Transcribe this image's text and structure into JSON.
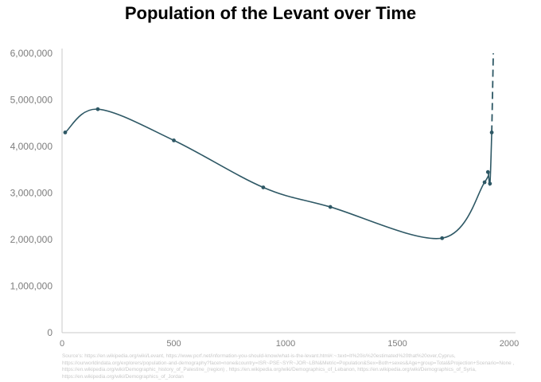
{
  "chart_data": {
    "type": "line",
    "title": "Population of the Levant over Time",
    "xlabel": "",
    "ylabel": "",
    "xlim": [
      0,
      2000
    ],
    "ylim": [
      0,
      6000000
    ],
    "x_ticks": [
      0,
      500,
      1000,
      1500,
      2000
    ],
    "y_ticks": [
      0,
      1000000,
      2000000,
      3000000,
      4000000,
      5000000,
      6000000
    ],
    "x_tick_labels": [
      "0",
      "500",
      "1000",
      "1500",
      "2000"
    ],
    "y_tick_labels": [
      "0",
      "1,000,000",
      "2,000,000",
      "3,000,000",
      "4,000,000",
      "5,000,000",
      "6,000,000"
    ],
    "grid": false,
    "legend": "none",
    "series": [
      {
        "color": "#2e5865",
        "x": [
          14,
          160,
          500,
          900,
          1200,
          1700,
          1890,
          1905,
          1914,
          1922
        ],
        "y": [
          4300000,
          4800000,
          4130000,
          3120000,
          2700000,
          2030000,
          3230000,
          3450000,
          3200000,
          4300000
        ]
      }
    ],
    "projection": {
      "style": "dashed",
      "color": "#2e5865",
      "x": [
        1922,
        1925,
        1927,
        1929
      ],
      "y": [
        4300000,
        5000000,
        5500000,
        6000000
      ]
    },
    "source": "Source's: https://en.wikipedia.org/wiki/Levant, https://www.pcrf.net/information-you-should-know/what-is-the-levant.html#:~:text=It%20is%20estimated%20that%20over,Cyprus, https://ourworldindata.org/explorers/population-and-demography?facet=none&country=ISR~PSE~SYR~JOR~LBN&Metric=Population&Sex=Both+sexes&Age+group=Total&Projection+Scenario=None , https://en.wikipedia.org/wiki/Demographic_history_of_Palestine_(region) , https://en.wikipedia.org/wiki/Demographics_of_Lebanon, https://en.wikipedia.org/wiki/Demographics_of_Syria, https://en.wikipedia.org/wiki/Demographics_of_Jordan"
  }
}
